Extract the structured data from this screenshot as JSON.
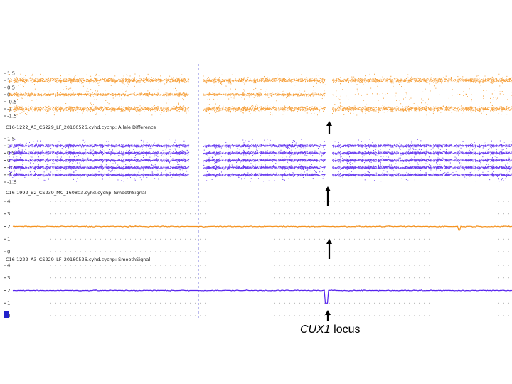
{
  "annotation": {
    "gene": "CUX1",
    "suffix": " locus"
  },
  "chart_data": [
    {
      "type": "scatter",
      "title": "",
      "ylim": [
        -1.5,
        1.5
      ],
      "yticks": [
        "1.5",
        "1",
        "0.5",
        "0",
        "-0.5",
        "-1",
        "-1.5"
      ],
      "color": "#f5921e",
      "bands": [
        1,
        0,
        -1
      ],
      "series": [
        {
          "values": []
        }
      ]
    },
    {
      "type": "scatter",
      "title": "C16-1222_A3_CS229_LF_20160526.cyhd.cychp: Allele Difference",
      "ylim": [
        -1.5,
        1.5
      ],
      "yticks": [
        "1.5",
        "1",
        "0.5",
        "0",
        "-0.5",
        "-1",
        "-1.5"
      ],
      "color": "#5522ee",
      "bands": [
        1,
        0.5,
        0,
        -0.5,
        -1
      ],
      "series": [
        {
          "values": []
        }
      ]
    },
    {
      "type": "line",
      "title": "C16-1992_B2_CS239_MC_160803.cyhd.cychp: SmoothSignal",
      "ylim": [
        0,
        4
      ],
      "yticks": [
        "4",
        "3",
        "2",
        "1",
        "0"
      ],
      "color": "#f5921e",
      "baseline": 2,
      "series": [
        {
          "values": []
        }
      ]
    },
    {
      "type": "line",
      "title": "C16-1222_A3_CS229_LF_20160526.cyhd.cychp: SmoothSignal",
      "ylim": [
        0,
        4
      ],
      "yticks": [
        "4",
        "3",
        "2",
        "1",
        "0"
      ],
      "color": "#5522ee",
      "baseline": 2,
      "dip_value": 1,
      "series": [
        {
          "values": []
        }
      ]
    }
  ]
}
